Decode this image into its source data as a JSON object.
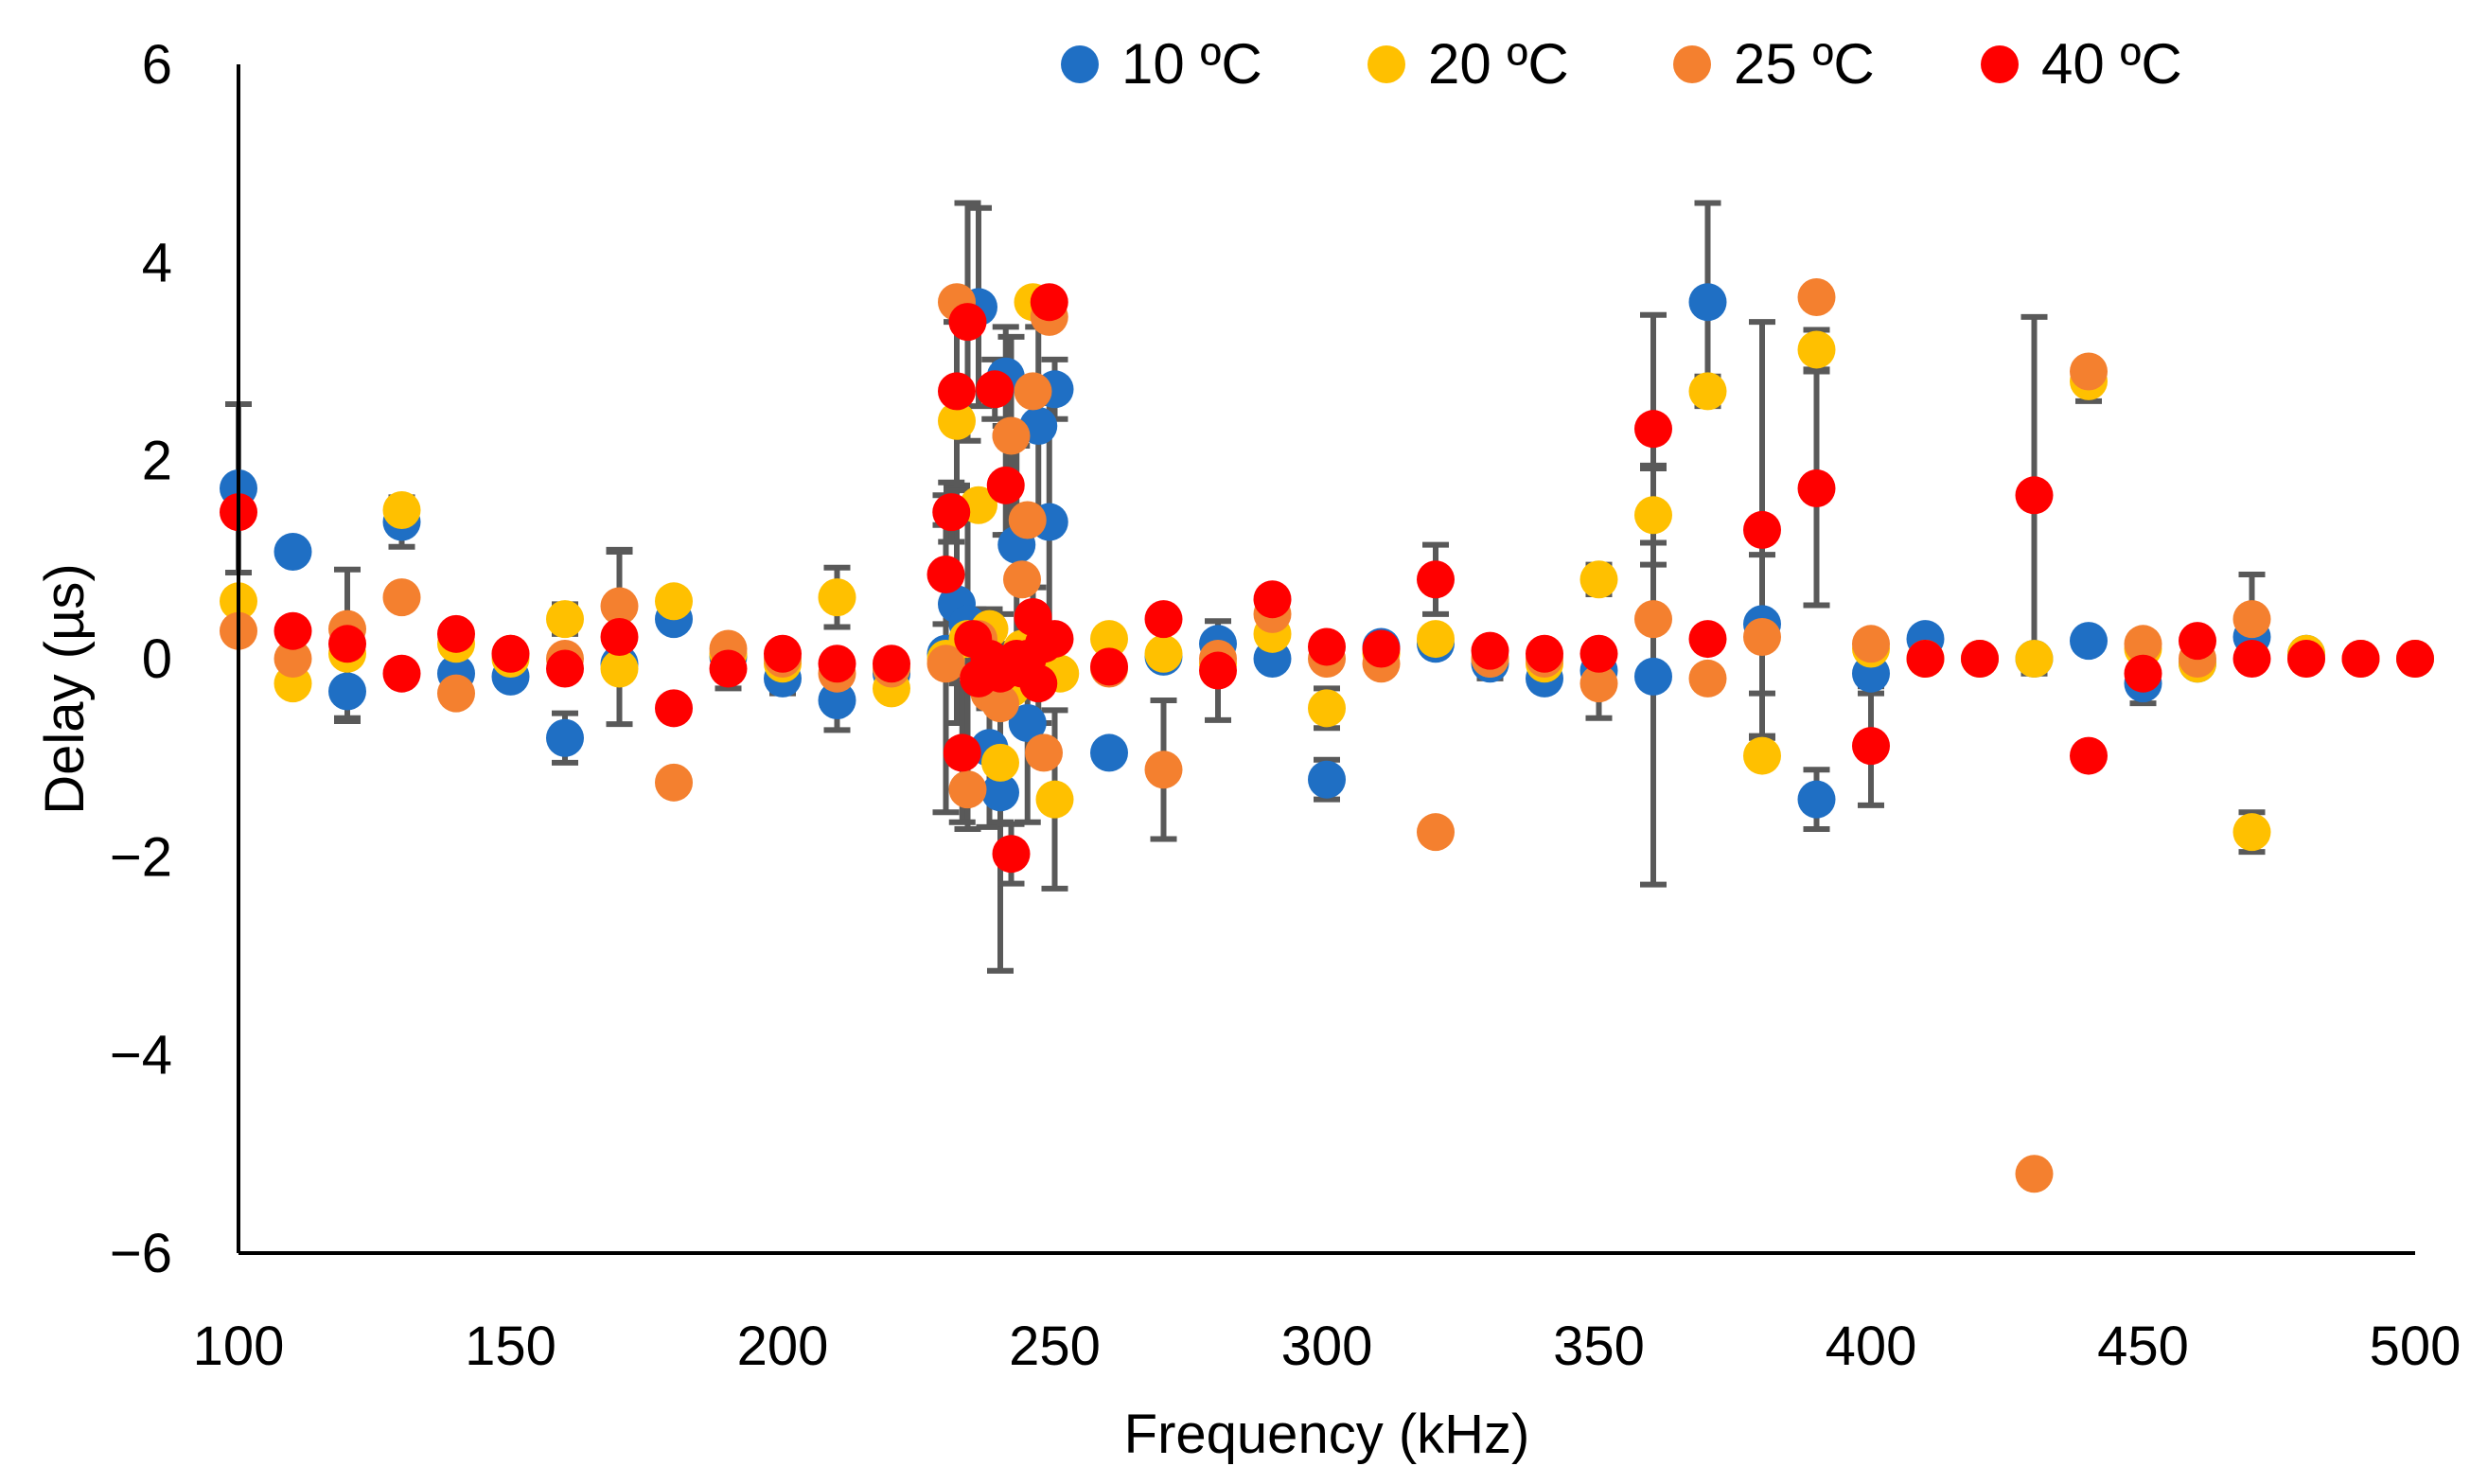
{
  "chart_data": {
    "type": "scatter",
    "title": "",
    "xlabel": "Frequency (kHz)",
    "ylabel": "Delay (µs)",
    "xlim": [
      100,
      500
    ],
    "ylim": [
      -6,
      6
    ],
    "x_ticks": [
      "100",
      "150",
      "200",
      "250",
      "300",
      "350",
      "400",
      "450",
      "500"
    ],
    "y_ticks": [
      "6",
      "4",
      "2",
      "0",
      "−2",
      "−4",
      "−6"
    ],
    "grid": false,
    "legend_position": "top",
    "series": [
      {
        "name": "10 ºC",
        "color": "#1f6fc4",
        "points": [
          [
            100,
            1.72,
            0.85
          ],
          [
            110,
            1.08,
            0
          ],
          [
            120,
            -0.33,
            0.3
          ],
          [
            130,
            1.38,
            0.25
          ],
          [
            140,
            -0.15,
            0.1
          ],
          [
            150,
            -0.18,
            0.1
          ],
          [
            160,
            -0.8,
            0.25
          ],
          [
            170,
            -0.05,
            0.1
          ],
          [
            180,
            0.4,
            0.1
          ],
          [
            190,
            0.02,
            0.1
          ],
          [
            200,
            -0.2,
            0.15
          ],
          [
            210,
            -0.42,
            0.3
          ],
          [
            220,
            -0.15,
            0.2
          ],
          [
            230,
            0.05,
            1.6
          ],
          [
            232,
            0.55,
            1.2
          ],
          [
            234,
            0.35,
            1.2
          ],
          [
            236,
            3.55,
            1.0
          ],
          [
            238,
            -0.9,
            0.8
          ],
          [
            240,
            -1.35,
            1.8
          ],
          [
            241,
            2.85,
            0.5
          ],
          [
            243,
            1.15,
            1.0
          ],
          [
            245,
            -0.65,
            1.0
          ],
          [
            247,
            2.35,
            1.0
          ],
          [
            249,
            1.38,
            1.2
          ],
          [
            250,
            2.72,
            0.3
          ],
          [
            260,
            -0.95,
            0
          ],
          [
            270,
            0.02,
            0
          ],
          [
            280,
            0.15,
            0
          ],
          [
            290,
            0.0,
            0
          ],
          [
            300,
            -1.22,
            0.2
          ],
          [
            310,
            0.12,
            0
          ],
          [
            320,
            0.15,
            0.1
          ],
          [
            330,
            -0.05,
            0.15
          ],
          [
            340,
            -0.2,
            0
          ],
          [
            350,
            -0.12,
            0
          ],
          [
            360,
            -0.18,
            2.1
          ],
          [
            370,
            3.6,
            1.0
          ],
          [
            380,
            0.35,
            0.7
          ],
          [
            390,
            -1.42,
            0.3
          ],
          [
            400,
            -0.15,
            0.2
          ],
          [
            410,
            0.2,
            0
          ],
          [
            420,
            0.0,
            0
          ],
          [
            430,
            0.0,
            0
          ],
          [
            440,
            0.18,
            0
          ],
          [
            450,
            -0.25,
            0.2
          ],
          [
            460,
            -0.05,
            0
          ],
          [
            470,
            0.22,
            0
          ],
          [
            480,
            0.05,
            0
          ],
          [
            490,
            0.0,
            0
          ],
          [
            500,
            0.0,
            0
          ]
        ]
      },
      {
        "name": "20 ºC",
        "color": "#ffc000",
        "points": [
          [
            100,
            0.58,
            0
          ],
          [
            110,
            -0.25,
            0
          ],
          [
            120,
            0.05,
            0
          ],
          [
            130,
            1.5,
            0
          ],
          [
            140,
            0.15,
            0
          ],
          [
            150,
            0.0,
            0
          ],
          [
            160,
            0.4,
            0.15
          ],
          [
            170,
            -0.1,
            0.1
          ],
          [
            180,
            0.58,
            0.1
          ],
          [
            190,
            0.05,
            0
          ],
          [
            200,
            -0.05,
            0
          ],
          [
            210,
            0.62,
            0.3
          ],
          [
            220,
            -0.3,
            0
          ],
          [
            230,
            0.0,
            0
          ],
          [
            232,
            2.4,
            1.0
          ],
          [
            234,
            0.2,
            0
          ],
          [
            236,
            1.55,
            0
          ],
          [
            238,
            0.3,
            0
          ],
          [
            240,
            -1.05,
            0.6
          ],
          [
            242,
            -0.3,
            0
          ],
          [
            244,
            0.1,
            0
          ],
          [
            246,
            3.6,
            0
          ],
          [
            248,
            -0.05,
            0
          ],
          [
            250,
            -1.42,
            0.9
          ],
          [
            251,
            -0.15,
            0
          ],
          [
            260,
            0.2,
            0
          ],
          [
            270,
            0.05,
            0
          ],
          [
            280,
            -0.05,
            0
          ],
          [
            290,
            0.25,
            0
          ],
          [
            300,
            -0.5,
            0.2
          ],
          [
            310,
            0.05,
            0
          ],
          [
            320,
            0.2,
            0
          ],
          [
            330,
            0.0,
            0
          ],
          [
            340,
            -0.05,
            0
          ],
          [
            350,
            0.8,
            0.15
          ],
          [
            360,
            1.45,
            0.5
          ],
          [
            370,
            2.7,
            0.15
          ],
          [
            380,
            -0.98,
            0.1
          ],
          [
            390,
            3.12,
            0.2
          ],
          [
            400,
            0.1,
            0
          ],
          [
            410,
            0.0,
            0
          ],
          [
            420,
            0.0,
            0
          ],
          [
            430,
            0.0,
            0
          ],
          [
            440,
            2.8,
            0.2
          ],
          [
            450,
            0.1,
            0
          ],
          [
            460,
            -0.05,
            0
          ],
          [
            470,
            -1.75,
            0.2
          ],
          [
            480,
            0.05,
            0
          ],
          [
            490,
            0.0,
            0
          ],
          [
            500,
            0.0,
            0
          ]
        ]
      },
      {
        "name": "25 ºC",
        "color": "#f4802f",
        "points": [
          [
            100,
            0.28,
            0
          ],
          [
            110,
            0.0,
            0
          ],
          [
            120,
            0.3,
            0
          ],
          [
            130,
            0.62,
            0
          ],
          [
            140,
            -0.35,
            0
          ],
          [
            150,
            0.05,
            0
          ],
          [
            160,
            0.0,
            0
          ],
          [
            170,
            0.53,
            0.55
          ],
          [
            180,
            -1.25,
            0
          ],
          [
            190,
            0.1,
            0
          ],
          [
            200,
            0.0,
            0
          ],
          [
            210,
            -0.15,
            0
          ],
          [
            220,
            -0.1,
            0
          ],
          [
            230,
            -0.05,
            0
          ],
          [
            232,
            3.6,
            0
          ],
          [
            234,
            -1.32,
            0.4
          ],
          [
            236,
            0.2,
            0
          ],
          [
            238,
            -0.35,
            0
          ],
          [
            240,
            -0.45,
            0
          ],
          [
            242,
            2.25,
            1.0
          ],
          [
            244,
            0.8,
            0
          ],
          [
            245,
            1.4,
            0
          ],
          [
            246,
            2.7,
            0
          ],
          [
            248,
            -0.95,
            0
          ],
          [
            249,
            3.45,
            0
          ],
          [
            260,
            -0.1,
            0
          ],
          [
            270,
            -1.12,
            0.7
          ],
          [
            280,
            0.0,
            0
          ],
          [
            290,
            0.45,
            0
          ],
          [
            300,
            0.0,
            0
          ],
          [
            310,
            -0.05,
            0
          ],
          [
            320,
            -1.75,
            0
          ],
          [
            330,
            0.0,
            0
          ],
          [
            340,
            0.0,
            0
          ],
          [
            350,
            -0.25,
            0.35
          ],
          [
            360,
            0.4,
            0
          ],
          [
            370,
            -0.2,
            0
          ],
          [
            380,
            0.22,
            1.0
          ],
          [
            390,
            3.65,
            0
          ],
          [
            400,
            0.15,
            0
          ],
          [
            410,
            0.0,
            0
          ],
          [
            420,
            0.0,
            0
          ],
          [
            430,
            -5.2,
            0
          ],
          [
            440,
            2.9,
            0
          ],
          [
            450,
            0.15,
            0
          ],
          [
            460,
            0.0,
            0
          ],
          [
            470,
            0.4,
            0.45
          ],
          [
            480,
            0.0,
            0
          ],
          [
            490,
            0.0,
            0
          ],
          [
            500,
            0.0,
            0
          ]
        ]
      },
      {
        "name": "40 ºC",
        "color": "#ff0000",
        "points": [
          [
            100,
            1.48,
            0
          ],
          [
            110,
            0.28,
            0
          ],
          [
            120,
            0.15,
            0.75
          ],
          [
            130,
            -0.15,
            0
          ],
          [
            140,
            0.25,
            0.1
          ],
          [
            150,
            0.05,
            0.05
          ],
          [
            160,
            -0.1,
            0
          ],
          [
            170,
            0.22,
            0.88
          ],
          [
            180,
            -0.5,
            0.1
          ],
          [
            190,
            -0.1,
            0.2
          ],
          [
            200,
            0.05,
            0
          ],
          [
            210,
            -0.05,
            0
          ],
          [
            220,
            -0.05,
            0
          ],
          [
            230,
            0.85,
            0.5
          ],
          [
            231,
            1.48,
            0.3
          ],
          [
            232,
            2.7,
            1.0
          ],
          [
            233,
            -0.95,
            0.7
          ],
          [
            234,
            3.4,
            1.2
          ],
          [
            235,
            0.2,
            0.3
          ],
          [
            236,
            -0.2,
            0
          ],
          [
            238,
            0.0,
            0.5
          ],
          [
            239,
            2.72,
            0.3
          ],
          [
            240,
            -0.15,
            0.3
          ],
          [
            241,
            1.75,
            0.5
          ],
          [
            242,
            -1.97,
            0.3
          ],
          [
            243,
            0.0,
            0
          ],
          [
            244,
            -0.1,
            0
          ],
          [
            245,
            0.0,
            0
          ],
          [
            246,
            0.42,
            0.3
          ],
          [
            247,
            -0.25,
            0.4
          ],
          [
            248,
            0.15,
            0
          ],
          [
            249,
            3.6,
            0
          ],
          [
            250,
            0.2,
            0
          ],
          [
            260,
            -0.08,
            0
          ],
          [
            270,
            0.4,
            0
          ],
          [
            280,
            -0.12,
            0.5
          ],
          [
            290,
            0.6,
            0
          ],
          [
            300,
            0.12,
            0
          ],
          [
            310,
            0.1,
            0
          ],
          [
            320,
            0.8,
            0.35
          ],
          [
            330,
            0.08,
            0
          ],
          [
            340,
            0.05,
            0
          ],
          [
            350,
            0.05,
            0
          ],
          [
            360,
            2.32,
            1.15
          ],
          [
            370,
            0.2,
            0
          ],
          [
            380,
            1.3,
            2.1
          ],
          [
            390,
            1.72,
            1.18
          ],
          [
            400,
            -0.88,
            0.6
          ],
          [
            410,
            0.0,
            0
          ],
          [
            420,
            0.0,
            0
          ],
          [
            430,
            1.65,
            1.8
          ],
          [
            440,
            -0.98,
            0
          ],
          [
            450,
            -0.15,
            0
          ],
          [
            460,
            0.18,
            0
          ],
          [
            470,
            0.0,
            0
          ],
          [
            480,
            0.0,
            0
          ],
          [
            490,
            0.0,
            0
          ],
          [
            500,
            0.0,
            0
          ]
        ]
      }
    ]
  }
}
